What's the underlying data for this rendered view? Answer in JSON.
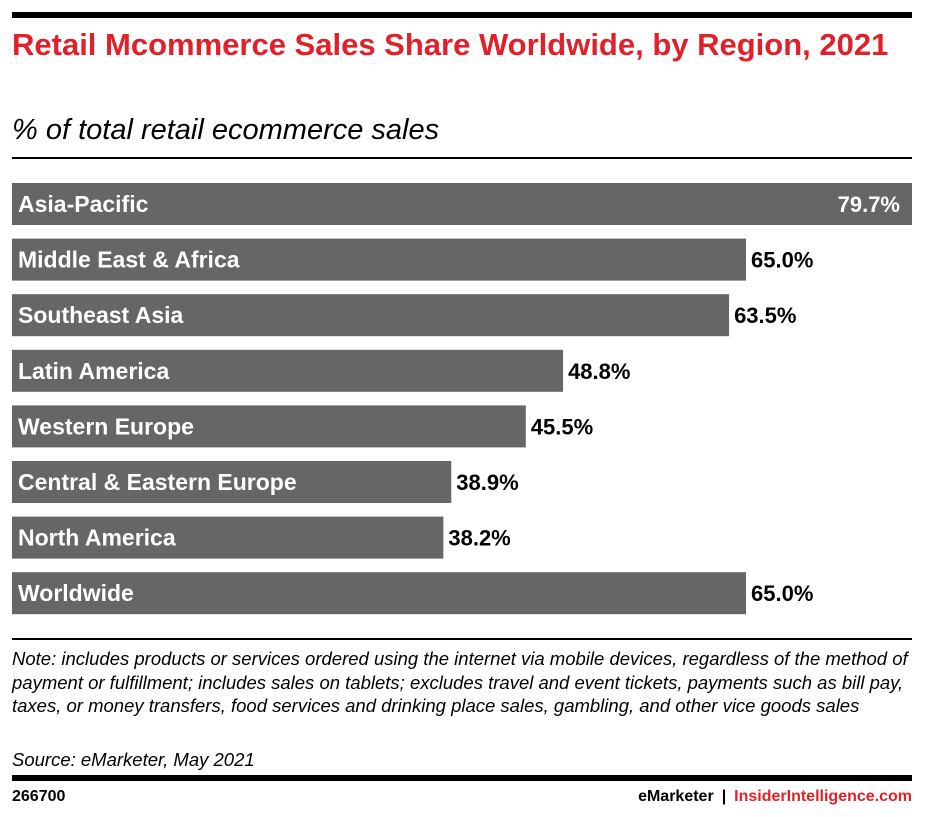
{
  "header": {
    "title": "Retail Mcommerce Sales Share Worldwide, by Region, 2021",
    "subtitle": "% of total retail ecommerce sales"
  },
  "chart_data": {
    "type": "bar",
    "orientation": "horizontal",
    "title": "Retail Mcommerce Sales Share Worldwide, by Region, 2021",
    "subtitle": "% of total retail ecommerce sales",
    "categories": [
      "Asia-Pacific",
      "Middle East & Africa",
      "Southeast Asia",
      "Latin America",
      "Western Europe",
      "Central & Eastern Europe",
      "North America",
      "Worldwide"
    ],
    "values": [
      79.7,
      65.0,
      63.5,
      48.8,
      45.5,
      38.9,
      38.2,
      65.0
    ],
    "value_labels": [
      "79.7%",
      "65.0%",
      "63.5%",
      "48.8%",
      "45.5%",
      "38.9%",
      "38.2%",
      "65.0%"
    ],
    "xlim": [
      0,
      79.7
    ],
    "grid": false,
    "bar_color": "#666666"
  },
  "footer": {
    "note": "Note: includes products or services ordered using the internet via mobile devices, regardless of the method of payment or fulfillment; includes sales on tablets; excludes travel and event tickets, payments such as bill pay, taxes, or money transfers, food services and drinking place sales, gambling, and other vice goods sales",
    "source": "Source: eMarketer, May 2021",
    "chart_id": "266700",
    "brand_left": "eMarketer",
    "brand_separator": "|",
    "brand_right": "InsiderIntelligence.com"
  },
  "colors": {
    "title": "#e2202a",
    "bar": "#666666",
    "brand_accent": "#e2202a"
  }
}
